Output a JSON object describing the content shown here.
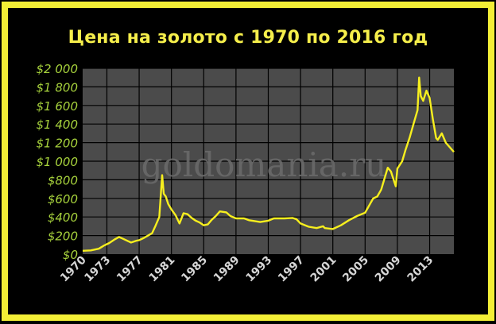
{
  "chart_data": {
    "type": "line",
    "title": "Цена на золото с 1970 по 2016 год",
    "watermark": "goldomania.ru",
    "xlabel": "",
    "ylabel": "",
    "xlim": [
      1970,
      2016
    ],
    "ylim": [
      0,
      2000
    ],
    "y_ticks": [
      0,
      200,
      400,
      600,
      800,
      1000,
      1200,
      1400,
      1600,
      1800,
      2000
    ],
    "y_tick_labels": [
      "$0",
      "$200",
      "$400",
      "$600",
      "$800",
      "$1 000",
      "$1 200",
      "$1 400",
      "$1 600",
      "$1 800",
      "$2 000"
    ],
    "x_ticks": [
      1970,
      1973,
      1977,
      1981,
      1985,
      1989,
      1993,
      1997,
      2001,
      2005,
      2009,
      2013
    ],
    "x_tick_labels": [
      "1970",
      "1973",
      "1977",
      "1981",
      "1985",
      "1989",
      "1993",
      "1997",
      "2001",
      "2005",
      "2009",
      "2013"
    ],
    "grid": true,
    "legend": "none",
    "colors": {
      "line": "#f7ef1e",
      "plot_bg": "#4b4b4b",
      "grid": "#000000",
      "tick_labels": "#a6d13c",
      "x_labels": "#d6d6d6",
      "title": "#f5ee4b",
      "border": "#f3ee36"
    },
    "series": [
      {
        "x": [
          1970,
          1971,
          1972,
          1972.7,
          1973.3,
          1974,
          1974.5,
          1975,
          1975.6,
          1976,
          1976.7,
          1977,
          1977.6,
          1978,
          1978.6,
          1979,
          1979.5,
          1979.85,
          1980.05,
          1980.3,
          1980.6,
          1981,
          1981.5,
          1982,
          1982.5,
          1983,
          1983.5,
          1984,
          1984.5,
          1985,
          1985.5,
          1986,
          1986.5,
          1987,
          1987.8,
          1988.3,
          1989,
          1990,
          1990.6,
          1991,
          1992,
          1993,
          1993.7,
          1994,
          1995,
          1996,
          1996.5,
          1997,
          1998,
          1999,
          1999.8,
          2000,
          2001,
          2002,
          2003,
          2004,
          2005,
          2006,
          2006.5,
          2007,
          2007.8,
          2008.2,
          2008.8,
          2009,
          2009.6,
          2010,
          2010.5,
          2011,
          2011.5,
          2011.7,
          2011.9,
          2012.2,
          2012.6,
          2013,
          2013.4,
          2013.8,
          2014,
          2014.5,
          2015,
          2015.5,
          2016
        ],
        "y": [
          36,
          40,
          58,
          95,
          120,
          160,
          185,
          165,
          140,
          125,
          145,
          150,
          175,
          195,
          225,
          300,
          400,
          850,
          650,
          620,
          540,
          480,
          420,
          330,
          440,
          430,
          390,
          360,
          340,
          310,
          320,
          370,
          410,
          460,
          450,
          410,
          385,
          385,
          365,
          360,
          345,
          360,
          385,
          385,
          385,
          390,
          375,
          330,
          295,
          280,
          300,
          280,
          270,
          310,
          365,
          410,
          445,
          600,
          620,
          695,
          930,
          890,
          730,
          920,
          1000,
          1120,
          1250,
          1400,
          1550,
          1900,
          1700,
          1650,
          1760,
          1680,
          1450,
          1250,
          1230,
          1300,
          1200,
          1150,
          1100
        ]
      }
    ]
  }
}
